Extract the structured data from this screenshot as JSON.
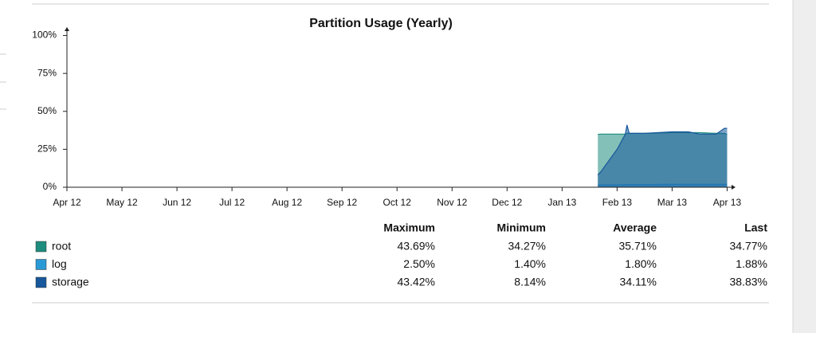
{
  "chart_data": {
    "type": "area",
    "title": "Partition Usage (Yearly)",
    "x": [
      9.65,
      9.7,
      10.0,
      10.15,
      10.18,
      10.22,
      10.5,
      11.0,
      11.3,
      11.5,
      11.8,
      11.95,
      12.0
    ],
    "xlim": [
      0,
      12.08
    ],
    "xticks": [
      {
        "value": 0,
        "label": "Apr 12"
      },
      {
        "value": 1,
        "label": "May 12"
      },
      {
        "value": 2,
        "label": "Jun 12"
      },
      {
        "value": 3,
        "label": "Jul 12"
      },
      {
        "value": 4,
        "label": "Aug 12"
      },
      {
        "value": 5,
        "label": "Sep 12"
      },
      {
        "value": 6,
        "label": "Oct 12"
      },
      {
        "value": 7,
        "label": "Nov 12"
      },
      {
        "value": 8,
        "label": "Dec 12"
      },
      {
        "value": 9,
        "label": "Jan 13"
      },
      {
        "value": 10,
        "label": "Feb 13"
      },
      {
        "value": 11,
        "label": "Mar 13"
      },
      {
        "value": 12,
        "label": "Apr 13"
      }
    ],
    "ylim": [
      0,
      105
    ],
    "yticks": [
      {
        "value": 0,
        "label": "0%"
      },
      {
        "value": 25,
        "label": "25%"
      },
      {
        "value": 50,
        "label": "50%"
      },
      {
        "value": 75,
        "label": "75%"
      },
      {
        "value": 100,
        "label": "100%"
      }
    ],
    "series": [
      {
        "name": "root",
        "color": "#1e8c7e",
        "values": [
          34.8,
          35,
          35,
          35,
          35.5,
          35.5,
          35.5,
          36,
          36,
          36,
          35.5,
          35.5,
          34.8
        ]
      },
      {
        "name": "log",
        "color": "#2a9ad6",
        "values": [
          1.4,
          1.5,
          1.6,
          1.7,
          1.8,
          1.8,
          1.8,
          1.9,
          1.9,
          1.9,
          1.9,
          1.9,
          1.9
        ]
      },
      {
        "name": "storage",
        "color": "#17579b",
        "values": [
          8.1,
          10,
          25,
          35,
          41,
          35.5,
          35.5,
          36.5,
          36.5,
          35,
          35,
          38.8,
          38.8
        ]
      }
    ]
  },
  "summary": {
    "columns": [
      "Maximum",
      "Minimum",
      "Average",
      "Last"
    ],
    "rows": [
      [
        "43.69%",
        "34.27%",
        "35.71%",
        "34.77%"
      ],
      [
        "2.50%",
        "1.40%",
        "1.80%",
        "1.88%"
      ],
      [
        "43.42%",
        "8.14%",
        "34.11%",
        "38.83%"
      ]
    ]
  }
}
